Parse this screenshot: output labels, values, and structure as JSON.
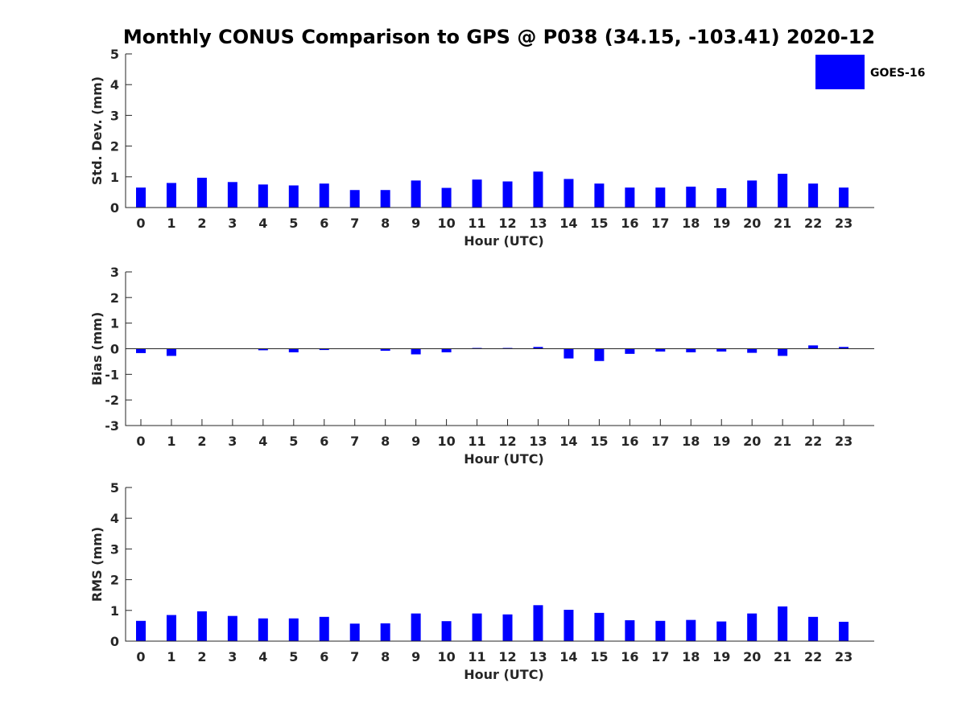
{
  "title": "Monthly CONUS Comparison to GPS @ P038 (34.15, -103.41) 2020-12",
  "legend": {
    "label": "GOES-16",
    "color": "#0000ff"
  },
  "bar_color": "#0000ff",
  "chart_data": [
    {
      "type": "bar",
      "name": "std",
      "categories": [
        "0",
        "1",
        "2",
        "3",
        "4",
        "5",
        "6",
        "7",
        "8",
        "9",
        "10",
        "11",
        "12",
        "13",
        "14",
        "15",
        "16",
        "17",
        "18",
        "19",
        "20",
        "21",
        "22",
        "23"
      ],
      "series": [
        {
          "name": "GOES-16",
          "values": [
            0.65,
            0.8,
            0.97,
            0.83,
            0.75,
            0.72,
            0.78,
            0.57,
            0.57,
            0.88,
            0.64,
            0.91,
            0.85,
            1.17,
            0.93,
            0.78,
            0.65,
            0.65,
            0.68,
            0.63,
            0.88,
            1.1,
            0.78,
            0.65
          ]
        }
      ],
      "xlabel": "Hour (UTC)",
      "ylabel": "Std. Dev. (mm)",
      "ylim": [
        0,
        5
      ],
      "yticks": [
        "0",
        "1",
        "2",
        "3",
        "4",
        "5"
      ],
      "grid": false,
      "legend_position": "top-right"
    },
    {
      "type": "bar",
      "name": "bias",
      "categories": [
        "0",
        "1",
        "2",
        "3",
        "4",
        "5",
        "6",
        "7",
        "8",
        "9",
        "10",
        "11",
        "12",
        "13",
        "14",
        "15",
        "16",
        "17",
        "18",
        "19",
        "20",
        "21",
        "22",
        "23"
      ],
      "series": [
        {
          "name": "GOES-16",
          "values": [
            -0.17,
            -0.28,
            -0.01,
            0.0,
            -0.06,
            -0.14,
            -0.05,
            -0.01,
            -0.08,
            -0.22,
            -0.14,
            0.03,
            0.03,
            0.07,
            -0.38,
            -0.48,
            -0.2,
            -0.11,
            -0.14,
            -0.11,
            -0.16,
            -0.28,
            0.13,
            0.07
          ]
        }
      ],
      "xlabel": "Hour (UTC)",
      "ylabel": "Bias (mm)",
      "ylim": [
        -3,
        3
      ],
      "yticks": [
        "-3",
        "-2",
        "-1",
        "0",
        "1",
        "2",
        "3"
      ],
      "grid": false
    },
    {
      "type": "bar",
      "name": "rms",
      "categories": [
        "0",
        "1",
        "2",
        "3",
        "4",
        "5",
        "6",
        "7",
        "8",
        "9",
        "10",
        "11",
        "12",
        "13",
        "14",
        "15",
        "16",
        "17",
        "18",
        "19",
        "20",
        "21",
        "22",
        "23"
      ],
      "series": [
        {
          "name": "GOES-16",
          "values": [
            0.66,
            0.85,
            0.97,
            0.82,
            0.74,
            0.74,
            0.79,
            0.57,
            0.58,
            0.9,
            0.65,
            0.9,
            0.87,
            1.17,
            1.02,
            0.92,
            0.68,
            0.66,
            0.69,
            0.64,
            0.9,
            1.13,
            0.79,
            0.63
          ]
        }
      ],
      "xlabel": "Hour (UTC)",
      "ylabel": "RMS (mm)",
      "ylim": [
        0,
        5
      ],
      "yticks": [
        "0",
        "1",
        "2",
        "3",
        "4",
        "5"
      ],
      "grid": false
    }
  ]
}
